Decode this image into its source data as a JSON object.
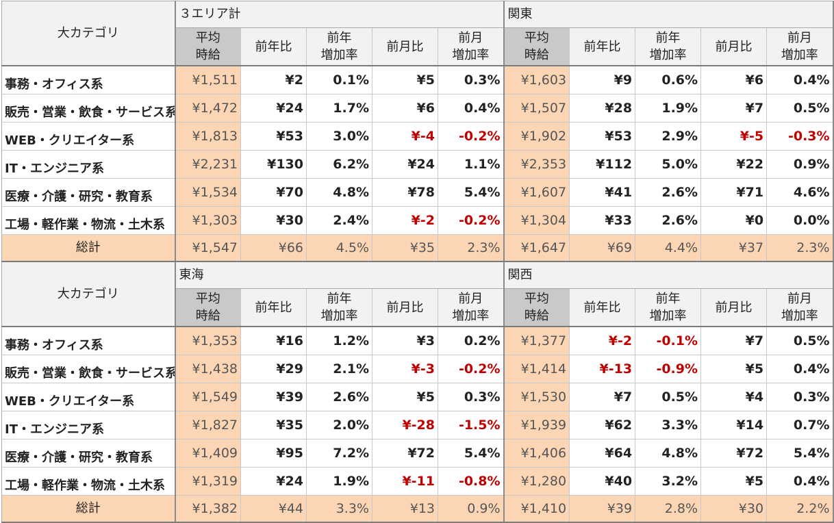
{
  "category_header": "大カテゴリ",
  "column_headers": {
    "avg_line1": "平均",
    "avg_line2": "時給",
    "yoy": "前年比",
    "yoy_rate_line1": "前年",
    "yoy_rate_line2": "増加率",
    "mom": "前月比",
    "mom_rate_line1": "前月",
    "mom_rate_line2": "増加率"
  },
  "categories": [
    "事務・オフィス系",
    "販売・営業・飲食・サービス系",
    "WEB・クリエイター系",
    "IT・エンジニア系",
    "医療・介護・研究・教育系",
    "工場・軽作業・物流・土木系"
  ],
  "total_label": "総計",
  "blocks": [
    {
      "regions": [
        {
          "name": "３エリア計",
          "rows": [
            [
              "¥1,511",
              "¥2",
              "0.1%",
              "¥5",
              "0.3%"
            ],
            [
              "¥1,472",
              "¥24",
              "1.7%",
              "¥6",
              "0.4%"
            ],
            [
              "¥1,813",
              "¥53",
              "3.0%",
              "¥-4",
              "-0.2%"
            ],
            [
              "¥2,231",
              "¥130",
              "6.2%",
              "¥24",
              "1.1%"
            ],
            [
              "¥1,534",
              "¥70",
              "4.8%",
              "¥78",
              "5.4%"
            ],
            [
              "¥1,303",
              "¥30",
              "2.4%",
              "¥-2",
              "-0.2%"
            ]
          ],
          "total": [
            "¥1,547",
            "¥66",
            "4.5%",
            "¥35",
            "2.3%"
          ]
        },
        {
          "name": "関東",
          "rows": [
            [
              "¥1,603",
              "¥9",
              "0.6%",
              "¥6",
              "0.4%"
            ],
            [
              "¥1,507",
              "¥28",
              "1.9%",
              "¥7",
              "0.5%"
            ],
            [
              "¥1,902",
              "¥53",
              "2.9%",
              "¥-5",
              "-0.3%"
            ],
            [
              "¥2,353",
              "¥112",
              "5.0%",
              "¥22",
              "0.9%"
            ],
            [
              "¥1,607",
              "¥41",
              "2.6%",
              "¥71",
              "4.6%"
            ],
            [
              "¥1,304",
              "¥33",
              "2.6%",
              "¥0",
              "0.0%"
            ]
          ],
          "total": [
            "¥1,647",
            "¥69",
            "4.4%",
            "¥37",
            "2.3%"
          ]
        }
      ]
    },
    {
      "regions": [
        {
          "name": "東海",
          "rows": [
            [
              "¥1,353",
              "¥16",
              "1.2%",
              "¥3",
              "0.2%"
            ],
            [
              "¥1,438",
              "¥29",
              "2.1%",
              "¥-3",
              "-0.2%"
            ],
            [
              "¥1,549",
              "¥39",
              "2.6%",
              "¥5",
              "0.3%"
            ],
            [
              "¥1,827",
              "¥35",
              "2.0%",
              "¥-28",
              "-1.5%"
            ],
            [
              "¥1,409",
              "¥95",
              "7.2%",
              "¥72",
              "5.4%"
            ],
            [
              "¥1,319",
              "¥24",
              "1.9%",
              "¥-11",
              "-0.8%"
            ]
          ],
          "total": [
            "¥1,382",
            "¥44",
            "3.3%",
            "¥13",
            "0.9%"
          ]
        },
        {
          "name": "関西",
          "rows": [
            [
              "¥1,377",
              "¥-2",
              "-0.1%",
              "¥7",
              "0.5%"
            ],
            [
              "¥1,414",
              "¥-13",
              "-0.9%",
              "¥5",
              "0.4%"
            ],
            [
              "¥1,530",
              "¥7",
              "0.5%",
              "¥4",
              "0.3%"
            ],
            [
              "¥1,939",
              "¥62",
              "3.3%",
              "¥14",
              "0.7%"
            ],
            [
              "¥1,406",
              "¥64",
              "4.8%",
              "¥72",
              "5.4%"
            ],
            [
              "¥1,280",
              "¥40",
              "3.2%",
              "¥5",
              "0.4%"
            ]
          ],
          "total": [
            "¥1,410",
            "¥39",
            "2.8%",
            "¥30",
            "2.2%"
          ]
        }
      ]
    }
  ],
  "colors": {
    "negative": "#c00000",
    "highlight": "#fcd5b4",
    "header_bg": "#f2f2f2",
    "avg_header_bg": "#c9c9c9"
  }
}
